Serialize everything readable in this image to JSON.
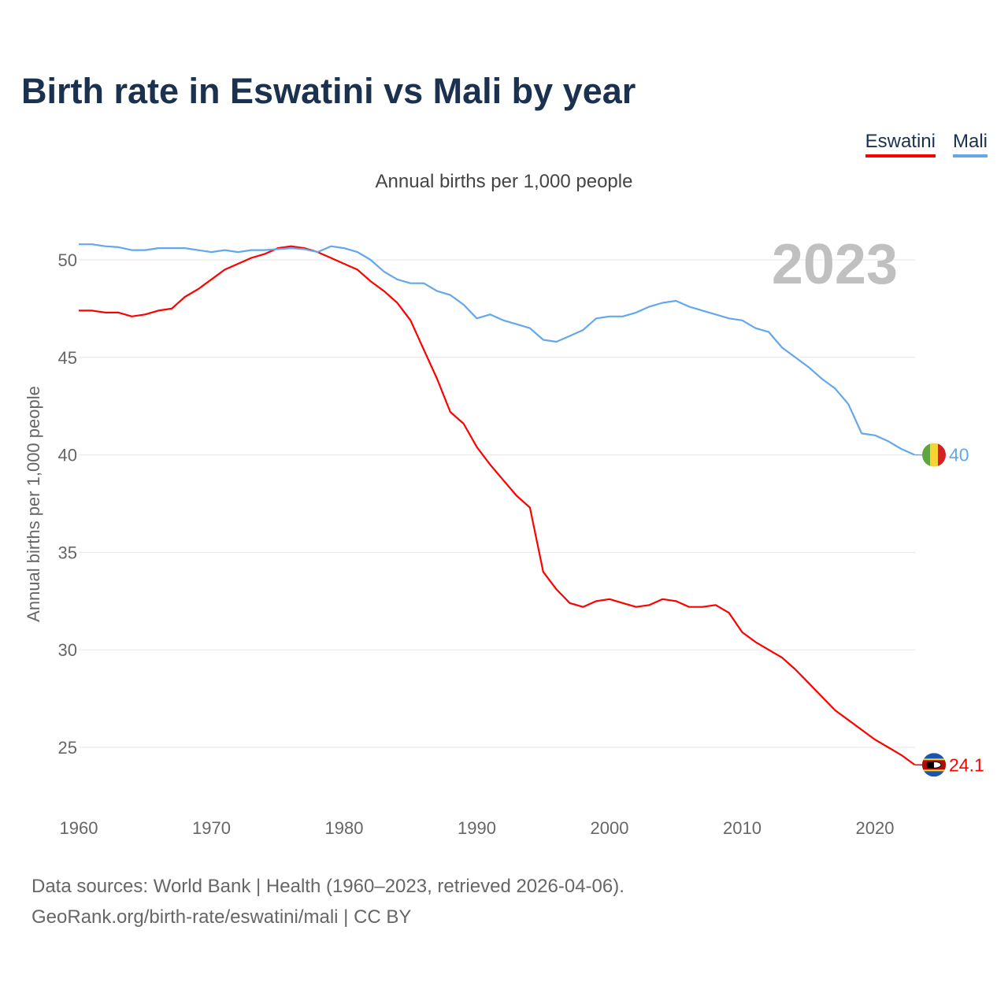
{
  "title": "Birth rate in Eswatini vs Mali by year",
  "subtitle": "Annual births per 1,000 people",
  "year_badge": "2023",
  "source_line1": "Data sources: World Bank | Health (1960–2023, retrieved 2026-04-06).",
  "source_line2": "GeoRank.org/birth-rate/eswatini/mali | CC BY",
  "chart_data": {
    "type": "line",
    "title": "Birth rate in Eswatini vs Mali by year",
    "xlabel": "",
    "ylabel": "Annual births per 1,000 people",
    "xlim": [
      1960,
      2023
    ],
    "ylim": [
      22.5,
      51.5
    ],
    "grid": true,
    "legend": "top-right",
    "x_ticks": [
      "1960",
      "1970",
      "1980",
      "1990",
      "2000",
      "2010",
      "2020"
    ],
    "y_ticks": [
      "25",
      "30",
      "35",
      "40",
      "45",
      "50"
    ],
    "x_start": 1960,
    "series": [
      {
        "name": "Eswatini",
        "color": "#ff0000",
        "end_label": "24.1",
        "flag": "eswatini-flag",
        "values": [
          47.4,
          47.4,
          47.3,
          47.3,
          47.1,
          47.2,
          47.4,
          47.5,
          48.1,
          48.5,
          49.0,
          49.5,
          49.8,
          50.1,
          50.3,
          50.6,
          50.7,
          50.6,
          50.4,
          50.1,
          49.8,
          49.5,
          48.9,
          48.4,
          47.8,
          46.9,
          45.4,
          43.9,
          42.2,
          41.6,
          40.4,
          39.5,
          38.7,
          37.9,
          37.3,
          34.0,
          33.1,
          32.4,
          32.2,
          32.5,
          32.6,
          32.4,
          32.2,
          32.3,
          32.6,
          32.5,
          32.2,
          32.2,
          32.3,
          31.9,
          30.9,
          30.4,
          30.0,
          29.6,
          29.0,
          28.3,
          27.6,
          26.9,
          26.4,
          25.9,
          25.4,
          25.0,
          24.6,
          24.1
        ]
      },
      {
        "name": "Mali",
        "color": "#63a8ec",
        "end_label": "40",
        "flag": "mali-flag",
        "values": [
          50.8,
          50.8,
          50.7,
          50.65,
          50.5,
          50.5,
          50.6,
          50.6,
          50.6,
          50.5,
          50.4,
          50.5,
          50.4,
          50.5,
          50.5,
          50.55,
          50.6,
          50.55,
          50.4,
          50.7,
          50.6,
          50.4,
          50.0,
          49.4,
          49.0,
          48.8,
          48.8,
          48.4,
          48.2,
          47.7,
          47.0,
          47.2,
          46.9,
          46.7,
          46.5,
          45.9,
          45.8,
          46.1,
          46.4,
          47.0,
          47.1,
          47.1,
          47.3,
          47.6,
          47.8,
          47.9,
          47.6,
          47.4,
          47.2,
          47.0,
          46.9,
          46.5,
          46.3,
          45.5,
          45.0,
          44.5,
          43.9,
          43.4,
          42.6,
          41.1,
          41.0,
          40.7,
          40.3,
          40.0
        ]
      }
    ]
  }
}
